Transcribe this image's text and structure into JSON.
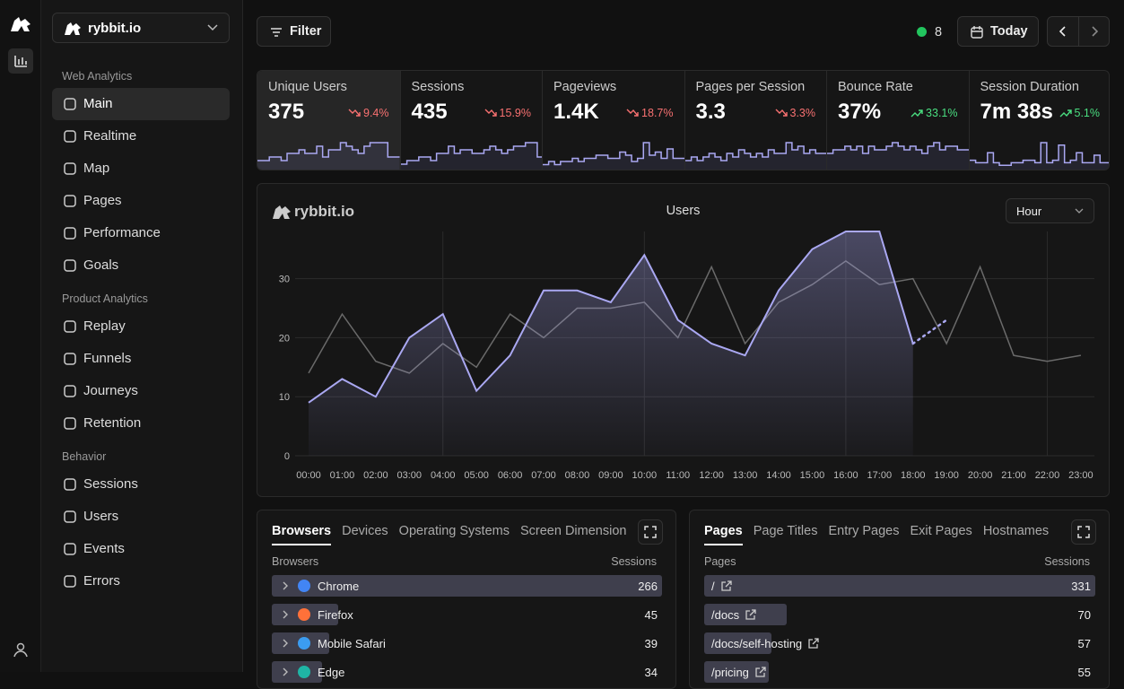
{
  "sidebar": {
    "brand": "rybbit.io",
    "sections": [
      {
        "title": "Web Analytics",
        "items": [
          {
            "label": "Main",
            "active": true
          },
          {
            "label": "Realtime"
          },
          {
            "label": "Map"
          },
          {
            "label": "Pages"
          },
          {
            "label": "Performance"
          },
          {
            "label": "Goals"
          }
        ]
      },
      {
        "title": "Product Analytics",
        "items": [
          {
            "label": "Replay"
          },
          {
            "label": "Funnels"
          },
          {
            "label": "Journeys"
          },
          {
            "label": "Retention"
          }
        ]
      },
      {
        "title": "Behavior",
        "items": [
          {
            "label": "Sessions"
          },
          {
            "label": "Users"
          },
          {
            "label": "Events"
          },
          {
            "label": "Errors"
          }
        ]
      }
    ]
  },
  "topbar": {
    "filter": "Filter",
    "online": 8,
    "date": "Today"
  },
  "metrics": [
    {
      "label": "Unique Users",
      "value": "375",
      "change": "9.4%",
      "trend": "down",
      "selected": true,
      "sparkline": [
        2,
        2,
        3,
        3,
        2,
        4,
        4,
        5,
        4,
        4,
        6,
        3,
        5,
        5,
        7,
        6,
        5,
        4,
        6,
        7,
        7,
        7,
        3,
        3
      ]
    },
    {
      "label": "Sessions",
      "value": "435",
      "change": "15.9%",
      "trend": "down",
      "sparkline": [
        1,
        2,
        2,
        3,
        3,
        2,
        4,
        4,
        6,
        4,
        5,
        5,
        4,
        4,
        5,
        6,
        5,
        4,
        5,
        6,
        6,
        7,
        7,
        3
      ]
    },
    {
      "label": "Pageviews",
      "value": "1.4K",
      "change": "18.7%",
      "trend": "down",
      "sparkline": [
        1,
        2,
        1,
        2,
        2,
        3,
        2,
        3,
        3,
        4,
        4,
        3,
        3,
        5,
        4,
        2,
        3,
        8,
        4,
        5,
        3,
        6,
        3,
        3
      ]
    },
    {
      "label": "Pages per Session",
      "value": "3.3",
      "change": "3.3%",
      "trend": "down",
      "sparkline": [
        2,
        3,
        2,
        3,
        4,
        3,
        2,
        4,
        3,
        5,
        4,
        3,
        4,
        3,
        5,
        4,
        4,
        7,
        5,
        6,
        4,
        5,
        4,
        4
      ]
    },
    {
      "label": "Bounce Rate",
      "value": "37%",
      "change": "33.1%",
      "trend": "up",
      "sparkline": [
        4,
        5,
        5,
        6,
        5,
        6,
        4,
        6,
        5,
        5,
        6,
        7,
        6,
        5,
        6,
        5,
        4,
        6,
        7,
        5,
        6,
        6,
        5,
        5
      ]
    },
    {
      "label": "Session Duration",
      "value": "7m 38s",
      "change": "5.1%",
      "trend": "up",
      "sparkline": [
        3,
        2,
        2,
        6,
        2,
        1,
        1,
        2,
        2,
        3,
        3,
        2,
        10,
        2,
        3,
        9,
        2,
        3,
        6,
        2,
        2,
        5,
        2,
        2
      ]
    }
  ],
  "chart_data": {
    "type": "line",
    "brand": "rybbit.io",
    "title": "Users",
    "interval": "Hour",
    "categories": [
      "00:00",
      "01:00",
      "02:00",
      "03:00",
      "04:00",
      "05:00",
      "06:00",
      "07:00",
      "08:00",
      "09:00",
      "10:00",
      "11:00",
      "12:00",
      "13:00",
      "14:00",
      "15:00",
      "16:00",
      "17:00",
      "18:00",
      "19:00",
      "20:00",
      "21:00",
      "22:00",
      "23:00"
    ],
    "series": [
      {
        "color": "#aaa8f2",
        "area": true,
        "dotted_last_segment": true,
        "values": [
          9,
          13,
          10,
          20,
          24,
          11,
          17,
          28,
          28,
          26,
          34,
          23,
          19,
          17,
          28,
          35,
          38,
          38,
          19,
          23,
          null,
          null,
          null,
          null
        ]
      },
      {
        "color": "#6a6a6a",
        "values": [
          14,
          24,
          16,
          14,
          19,
          15,
          24,
          20,
          25,
          25,
          26,
          20,
          32,
          19,
          26,
          29,
          33,
          29,
          30,
          19,
          32,
          17,
          16,
          17
        ]
      }
    ],
    "ylim": [
      0,
      38
    ],
    "yticks": [
      0,
      10,
      20,
      30
    ],
    "grid": true
  },
  "panels": [
    {
      "tabs": [
        "Browsers",
        "Devices",
        "Operating Systems",
        "Screen Dimension"
      ],
      "active_tab": 0,
      "header": [
        "Browsers",
        "Sessions"
      ],
      "rows": [
        {
          "label": "Chrome",
          "value": 266,
          "icon_color": "#4285f4"
        },
        {
          "label": "Firefox",
          "value": 45,
          "icon_color": "#ff7139"
        },
        {
          "label": "Mobile Safari",
          "value": 39,
          "icon_color": "#3b9cf0"
        },
        {
          "label": "Edge",
          "value": 34,
          "icon_color": "#1fb5a5"
        }
      ]
    },
    {
      "tabs": [
        "Pages",
        "Page Titles",
        "Entry Pages",
        "Exit Pages",
        "Hostnames"
      ],
      "active_tab": 0,
      "header": [
        "Pages",
        "Sessions"
      ],
      "rows": [
        {
          "label": "/",
          "value": 331
        },
        {
          "label": "/docs",
          "value": 70
        },
        {
          "label": "/docs/self-hosting",
          "value": 57
        },
        {
          "label": "/pricing",
          "value": 55
        }
      ]
    }
  ]
}
